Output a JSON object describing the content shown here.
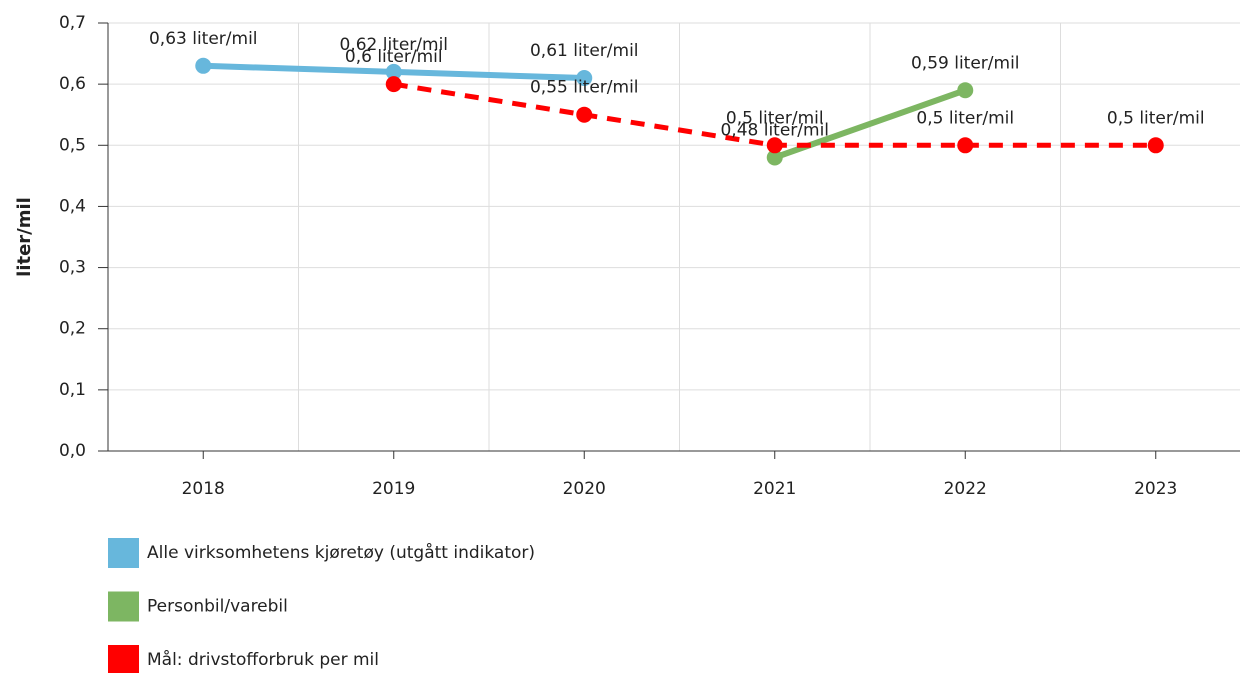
{
  "chart_data": {
    "type": "line",
    "y_label": "liter/mil",
    "categories": [
      "2018",
      "2019",
      "2020",
      "2021",
      "2022",
      "2023"
    ],
    "series": [
      {
        "name": "Alle virksomhetens kjøretøy (utgått indikator)",
        "color": "#67b7dc",
        "dashed": false,
        "values": [
          0.63,
          0.62,
          0.61,
          null,
          null,
          null
        ],
        "value_labels": [
          "0,63 liter/mil",
          "0,62 liter/mil",
          "0,61 liter/mil",
          null,
          null,
          null
        ]
      },
      {
        "name": "Personbil/varebil",
        "color": "#7db662",
        "dashed": false,
        "values": [
          null,
          null,
          null,
          0.48,
          0.59,
          null
        ],
        "value_labels": [
          null,
          null,
          null,
          "0,48 liter/mil",
          "0,59 liter/mil",
          null
        ]
      },
      {
        "name": "Mål: drivstofforbruk per mil",
        "color": "#ff0000",
        "dashed": true,
        "values": [
          null,
          0.6,
          0.55,
          0.5,
          0.5,
          0.5
        ],
        "value_labels": [
          null,
          "0,6 liter/mil",
          "0,55 liter/mil",
          "0,5 liter/mil",
          "0,5 liter/mil",
          "0,5 liter/mil"
        ]
      }
    ],
    "ylim": [
      0,
      0.7
    ],
    "yticks": [
      {
        "value": 0,
        "label": "0,0"
      },
      {
        "value": 0.1,
        "label": "0,1"
      },
      {
        "value": 0.2,
        "label": "0,2"
      },
      {
        "value": 0.3,
        "label": "0,3"
      },
      {
        "value": 0.4,
        "label": "0,4"
      },
      {
        "value": 0.5,
        "label": "0,5"
      },
      {
        "value": 0.6,
        "label": "0,6"
      },
      {
        "value": 0.7,
        "label": "0,7"
      }
    ],
    "grid": true
  }
}
